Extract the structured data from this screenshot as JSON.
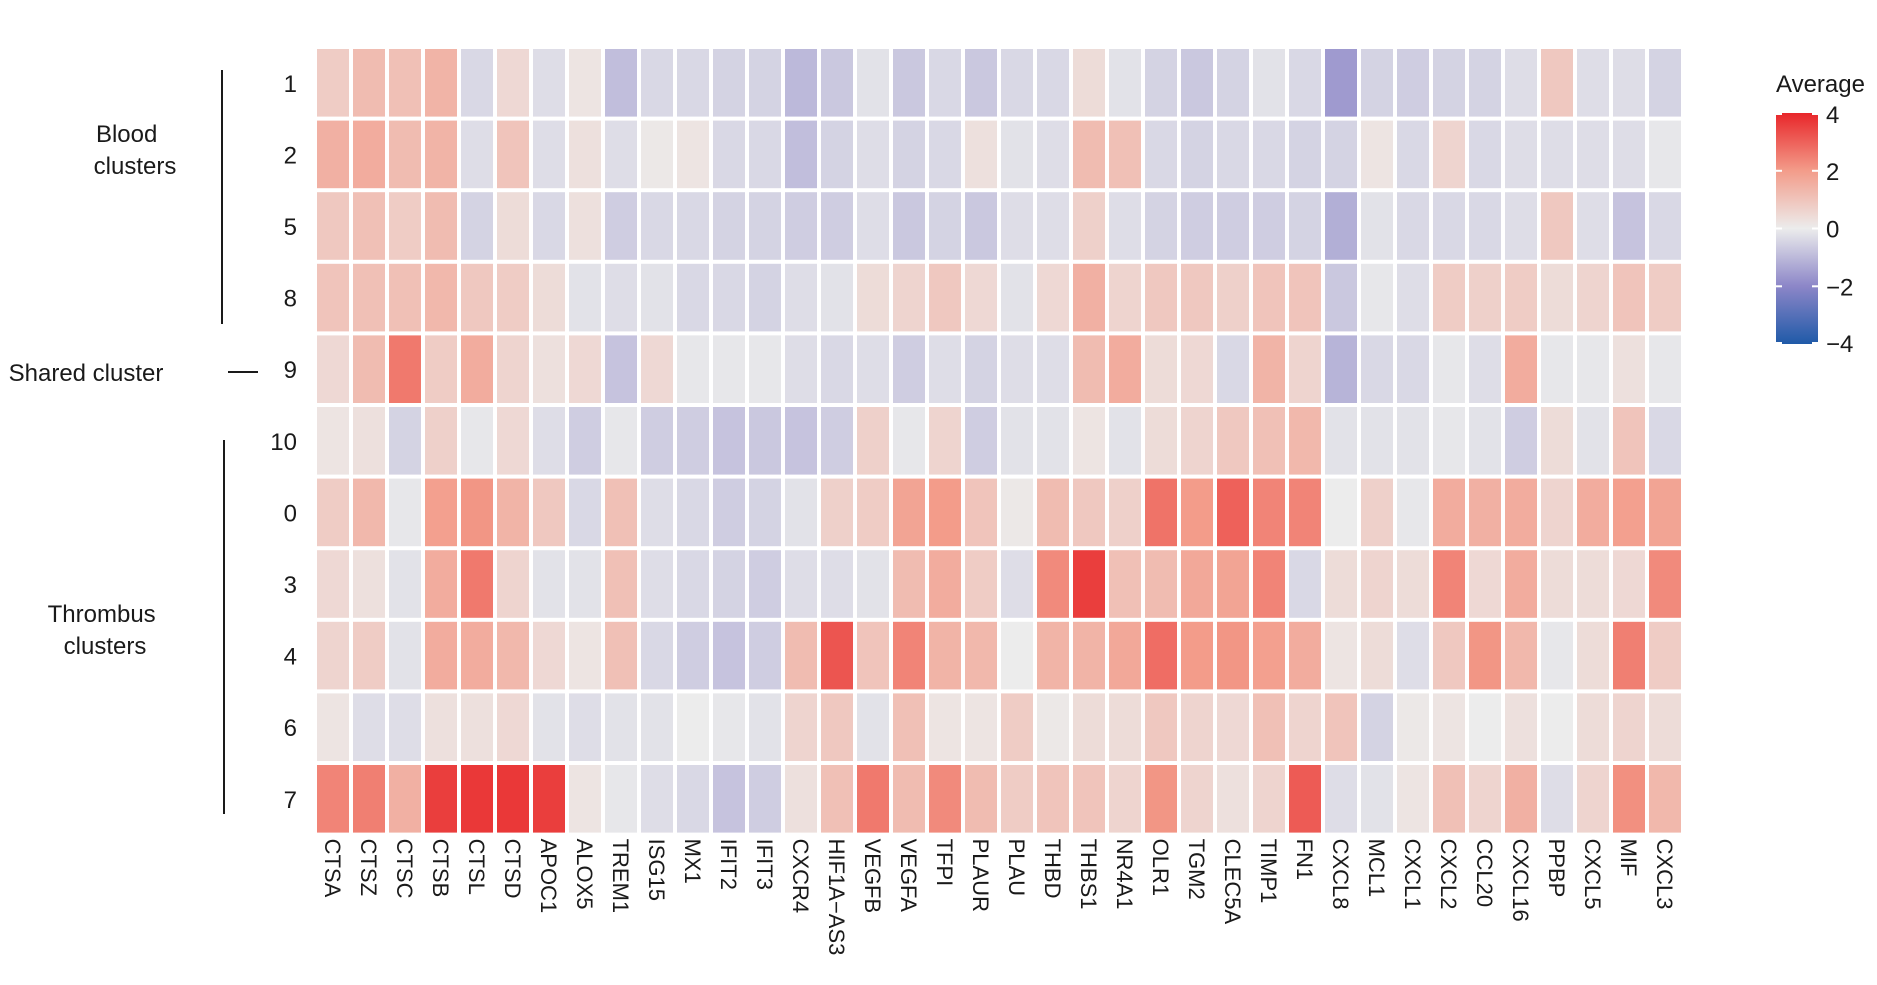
{
  "chart_data": {
    "type": "heatmap",
    "legend": {
      "title": "Average",
      "ticks": [
        4,
        2,
        0,
        -2,
        -4
      ],
      "range": [
        -4,
        4
      ],
      "placement": "top-right"
    },
    "group_labels": [
      {
        "label": "Blood\nclusters",
        "rows": [
          "1",
          "2",
          "5",
          "8"
        ]
      },
      {
        "label": "Shared cluster",
        "rows": [
          "9"
        ]
      },
      {
        "label": "Thrombus\nclusters",
        "rows": [
          "10",
          "0",
          "3",
          "4",
          "6",
          "7"
        ]
      }
    ],
    "rows": [
      "1",
      "2",
      "5",
      "8",
      "9",
      "10",
      "0",
      "3",
      "4",
      "6",
      "7"
    ],
    "columns": [
      "CTSA",
      "CTSZ",
      "CTSC",
      "CTSB",
      "CTSL",
      "CTSD",
      "APOC1",
      "ALOX5",
      "TREM1",
      "ISG15",
      "MX1",
      "IFIT2",
      "IFIT3",
      "CXCR4",
      "HIF1A−AS3",
      "VEGFB",
      "VEGFA",
      "TFPI",
      "PLAUR",
      "PLAU",
      "THBD",
      "THBS1",
      "NR4A1",
      "OLR1",
      "TGM2",
      "CLEC5A",
      "TIMP1",
      "FN1",
      "CXCL8",
      "MCL1",
      "CXCL1",
      "CXCL2",
      "CCL20",
      "CXCL16",
      "PPBP",
      "CXCL5",
      "MIF",
      "CXCL3"
    ],
    "values": [
      [
        0.8,
        1.2,
        1.1,
        1.4,
        -0.4,
        0.5,
        -0.3,
        0.2,
        -0.9,
        -0.4,
        -0.4,
        -0.5,
        -0.5,
        -1.0,
        -0.7,
        -0.2,
        -0.7,
        -0.4,
        -0.7,
        -0.4,
        -0.4,
        0.4,
        -0.2,
        -0.5,
        -0.7,
        -0.5,
        -0.2,
        -0.4,
        -1.6,
        -0.5,
        -0.6,
        -0.5,
        -0.5,
        -0.3,
        0.9,
        -0.3,
        -0.3,
        -0.5
      ],
      [
        1.5,
        1.6,
        1.2,
        1.4,
        -0.3,
        1.0,
        -0.3,
        0.3,
        -0.3,
        0.1,
        0.2,
        -0.4,
        -0.4,
        -0.9,
        -0.5,
        -0.3,
        -0.5,
        -0.4,
        0.3,
        -0.2,
        -0.3,
        1.2,
        1.1,
        -0.4,
        -0.5,
        -0.4,
        -0.4,
        -0.5,
        -0.5,
        0.2,
        -0.4,
        0.6,
        -0.4,
        -0.3,
        -0.3,
        -0.3,
        -0.3,
        -0.1
      ],
      [
        0.9,
        1.1,
        0.8,
        1.2,
        -0.5,
        0.4,
        -0.4,
        0.3,
        -0.6,
        -0.4,
        -0.4,
        -0.5,
        -0.5,
        -0.6,
        -0.6,
        -0.3,
        -0.7,
        -0.5,
        -0.7,
        -0.3,
        -0.3,
        0.7,
        -0.3,
        -0.5,
        -0.6,
        -0.6,
        -0.6,
        -0.5,
        -1.2,
        -0.2,
        -0.4,
        -0.4,
        -0.4,
        -0.3,
        0.9,
        -0.3,
        -0.8,
        -0.4
      ],
      [
        1.0,
        1.1,
        1.1,
        1.3,
        0.9,
        0.8,
        0.4,
        -0.2,
        -0.3,
        -0.2,
        -0.4,
        -0.4,
        -0.5,
        -0.3,
        -0.2,
        0.4,
        0.6,
        0.9,
        0.5,
        -0.2,
        0.5,
        1.5,
        0.6,
        0.9,
        0.9,
        0.7,
        1.0,
        1.0,
        -0.7,
        -0.1,
        -0.3,
        0.8,
        0.7,
        0.8,
        0.4,
        0.6,
        1.0,
        0.8
      ],
      [
        0.5,
        1.2,
        2.6,
        0.8,
        1.6,
        0.6,
        0.3,
        0.5,
        -0.8,
        0.5,
        -0.1,
        -0.1,
        -0.1,
        -0.3,
        -0.4,
        -0.3,
        -0.6,
        -0.3,
        -0.5,
        -0.3,
        -0.3,
        1.2,
        1.6,
        0.4,
        0.5,
        -0.4,
        1.4,
        0.6,
        -1.1,
        -0.4,
        -0.4,
        -0.1,
        -0.3,
        1.6,
        -0.1,
        -0.1,
        0.3,
        -0.1
      ],
      [
        0.2,
        0.3,
        -0.5,
        0.7,
        -0.1,
        0.5,
        -0.3,
        -0.6,
        -0.1,
        -0.6,
        -0.6,
        -0.8,
        -0.7,
        -0.8,
        -0.6,
        0.7,
        -0.1,
        0.6,
        -0.6,
        -0.2,
        -0.2,
        0.2,
        -0.2,
        0.4,
        0.6,
        0.9,
        1.1,
        1.3,
        -0.2,
        -0.2,
        -0.2,
        -0.1,
        -0.2,
        -0.6,
        0.4,
        -0.2,
        1.0,
        -0.4
      ],
      [
        0.8,
        1.3,
        -0.1,
        1.9,
        2.1,
        1.4,
        0.9,
        -0.4,
        1.1,
        -0.3,
        -0.4,
        -0.6,
        -0.5,
        -0.2,
        0.7,
        0.8,
        1.8,
        2.0,
        1.0,
        0.1,
        1.2,
        0.9,
        0.7,
        2.7,
        2.0,
        3.0,
        2.4,
        2.4,
        0.0,
        0.7,
        -0.1,
        1.6,
        1.5,
        1.6,
        0.6,
        1.6,
        1.9,
        1.8
      ],
      [
        0.5,
        0.3,
        -0.2,
        1.6,
        2.6,
        0.6,
        -0.2,
        -0.2,
        1.1,
        -0.3,
        -0.4,
        -0.5,
        -0.6,
        -0.3,
        -0.3,
        -0.2,
        1.2,
        1.6,
        0.8,
        -0.3,
        2.3,
        3.6,
        1.1,
        1.2,
        1.7,
        1.8,
        2.4,
        -0.4,
        0.4,
        0.6,
        0.4,
        2.4,
        0.5,
        1.6,
        0.4,
        0.4,
        0.5,
        2.3
      ],
      [
        0.6,
        0.8,
        -0.2,
        1.6,
        1.6,
        1.3,
        0.5,
        0.2,
        1.1,
        -0.4,
        -0.6,
        -0.8,
        -0.6,
        1.2,
        3.2,
        1.0,
        2.4,
        1.4,
        1.3,
        0.0,
        1.4,
        1.4,
        1.7,
        2.8,
        2.0,
        2.1,
        1.9,
        1.6,
        0.2,
        0.4,
        -0.3,
        0.9,
        2.1,
        1.3,
        -0.1,
        0.4,
        2.5,
        0.8
      ],
      [
        0.2,
        -0.3,
        -0.3,
        0.3,
        0.3,
        0.5,
        -0.2,
        -0.3,
        -0.2,
        -0.2,
        0.0,
        -0.1,
        -0.2,
        0.6,
        0.9,
        -0.2,
        1.1,
        0.2,
        0.2,
        0.8,
        0.1,
        0.4,
        0.4,
        0.9,
        0.6,
        0.5,
        1.1,
        0.6,
        1.0,
        -0.5,
        0.1,
        0.2,
        0.0,
        0.3,
        0.0,
        0.4,
        0.6,
        0.4
      ],
      [
        2.4,
        2.5,
        1.5,
        3.6,
        3.7,
        3.7,
        3.6,
        0.2,
        -0.1,
        -0.3,
        -0.4,
        -0.8,
        -0.6,
        0.3,
        1.1,
        2.6,
        1.2,
        2.3,
        1.2,
        0.8,
        1.0,
        1.0,
        0.6,
        2.1,
        0.6,
        0.3,
        0.6,
        3.1,
        -0.3,
        -0.2,
        0.2,
        1.1,
        0.6,
        1.5,
        -0.3,
        0.6,
        2.2,
        1.3
      ]
    ]
  }
}
